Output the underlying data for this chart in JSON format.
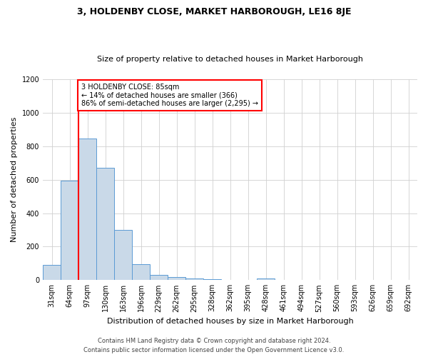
{
  "title": "3, HOLDENBY CLOSE, MARKET HARBOROUGH, LE16 8JE",
  "subtitle": "Size of property relative to detached houses in Market Harborough",
  "xlabel": "Distribution of detached houses by size in Market Harborough",
  "ylabel": "Number of detached properties",
  "footer1": "Contains HM Land Registry data © Crown copyright and database right 2024.",
  "footer2": "Contains public sector information licensed under the Open Government Licence v3.0.",
  "categories": [
    "31sqm",
    "64sqm",
    "97sqm",
    "130sqm",
    "163sqm",
    "196sqm",
    "229sqm",
    "262sqm",
    "295sqm",
    "328sqm",
    "362sqm",
    "395sqm",
    "428sqm",
    "461sqm",
    "494sqm",
    "527sqm",
    "560sqm",
    "593sqm",
    "626sqm",
    "659sqm",
    "692sqm"
  ],
  "values": [
    90,
    595,
    845,
    670,
    300,
    95,
    30,
    20,
    10,
    5,
    0,
    0,
    10,
    0,
    0,
    0,
    0,
    0,
    0,
    0,
    0
  ],
  "bar_color": "#c9d9e8",
  "bar_edge_color": "#5b9bd5",
  "grid_color": "#d0d0d0",
  "vline_x": 1.5,
  "vline_color": "red",
  "annotation_text": "3 HOLDENBY CLOSE: 85sqm\n← 14% of detached houses are smaller (366)\n86% of semi-detached houses are larger (2,295) →",
  "annotation_box_color": "white",
  "annotation_box_edge": "red",
  "ylim": [
    0,
    1200
  ],
  "yticks": [
    0,
    200,
    400,
    600,
    800,
    1000,
    1200
  ],
  "background_color": "white",
  "title_fontsize": 9,
  "subtitle_fontsize": 8,
  "ylabel_fontsize": 8,
  "xlabel_fontsize": 8,
  "tick_fontsize": 7,
  "annotation_fontsize": 7,
  "footer_fontsize": 6
}
